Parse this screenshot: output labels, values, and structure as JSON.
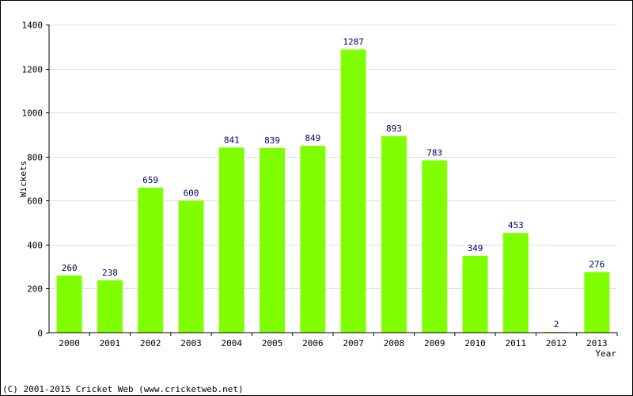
{
  "chart_data": {
    "type": "bar",
    "title": "",
    "xlabel": "Year",
    "ylabel": "Wickets",
    "categories": [
      "2000",
      "2001",
      "2002",
      "2003",
      "2004",
      "2005",
      "2006",
      "2007",
      "2008",
      "2009",
      "2010",
      "2011",
      "2012",
      "2013"
    ],
    "values": [
      260,
      238,
      659,
      600,
      841,
      839,
      849,
      1287,
      893,
      783,
      349,
      453,
      2,
      276
    ],
    "ylim": [
      0,
      1400
    ],
    "yticks": [
      0,
      200,
      400,
      600,
      800,
      1000,
      1200,
      1400
    ],
    "grid": true,
    "bar_color": "#7fff00",
    "label_color": "#000066"
  },
  "footer": {
    "text": "(C) 2001-2015 Cricket Web (www.cricketweb.net)"
  }
}
